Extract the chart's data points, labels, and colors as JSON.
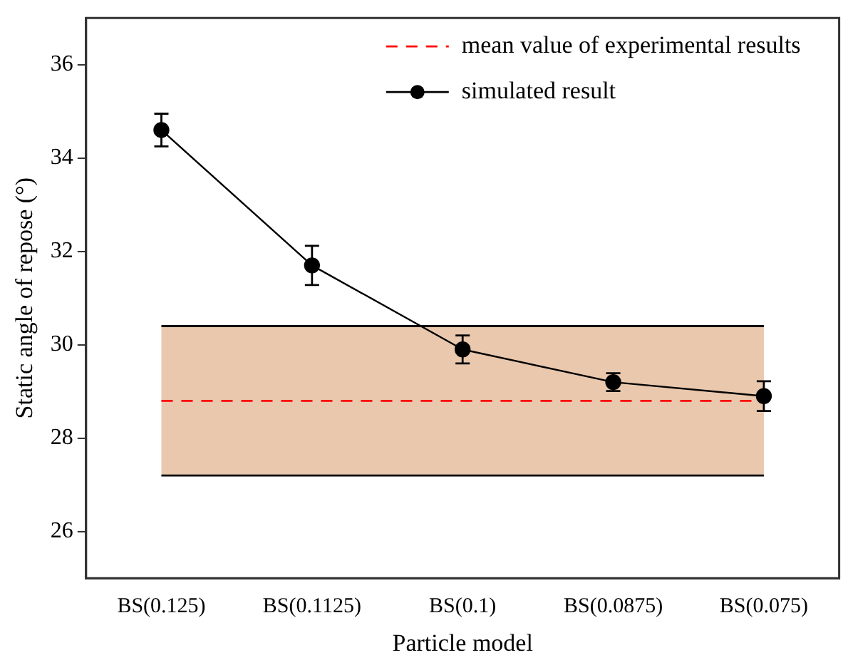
{
  "chart_data": {
    "type": "line",
    "xlabel": "Particle model",
    "ylabel": "Static angle of repose (°)",
    "categories": [
      "BS(0.125)",
      "BS(0.1125)",
      "BS(0.1)",
      "BS(0.0875)",
      "BS(0.075)"
    ],
    "series": [
      {
        "name": "simulated result",
        "color": "#000000",
        "values": [
          34.6,
          31.7,
          29.9,
          29.2,
          28.9
        ],
        "errors": [
          0.35,
          0.42,
          0.3,
          0.19,
          0.32
        ]
      }
    ],
    "ylim": [
      25,
      37
    ],
    "yticks": [
      26,
      28,
      30,
      32,
      34,
      36
    ],
    "ref_lines": [
      {
        "axis": "y",
        "value": 28.8,
        "label": "mean value of experimental results",
        "color": "#ff0000",
        "line_style": "dashed"
      },
      {
        "axis": "y",
        "value": 30.4,
        "color": "#000000",
        "line_style": "solid"
      },
      {
        "axis": "y",
        "value": 27.2,
        "color": "#000000",
        "line_style": "solid"
      }
    ],
    "bands": [
      {
        "axis": "y",
        "from": 27.2,
        "to": 30.4,
        "color": "#e9c8ad"
      }
    ],
    "marker": "circle",
    "line_style": "solid",
    "grid": false,
    "legend": "top right"
  }
}
